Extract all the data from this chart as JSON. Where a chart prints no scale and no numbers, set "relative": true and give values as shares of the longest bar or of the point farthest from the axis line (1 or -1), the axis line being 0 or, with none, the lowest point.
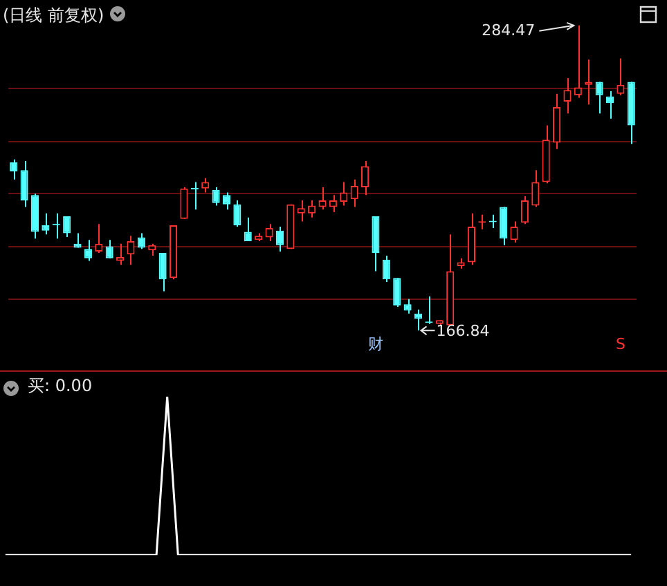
{
  "chart_data": [
    {
      "type": "candlestick",
      "title": "(日线 前复权)",
      "categories": [
        null,
        null,
        null,
        null,
        null,
        null,
        null,
        null,
        null,
        null,
        null,
        null,
        null,
        null,
        null,
        null,
        null,
        null,
        null,
        null,
        null,
        null,
        null,
        null,
        null,
        null,
        null,
        null,
        null,
        null,
        null,
        null,
        null,
        null,
        null,
        null,
        null,
        null,
        null,
        null,
        null,
        null,
        null,
        null,
        null,
        null,
        null,
        null,
        null,
        null,
        null,
        null,
        null,
        null,
        null,
        null,
        null,
        null,
        null
      ],
      "ohlc": [
        [
          231.7,
          232.8,
          225.1,
          228.2
        ],
        [
          228.7,
          232.2,
          214.5,
          217.0
        ],
        [
          219.1,
          219.6,
          202.3,
          204.9
        ],
        [
          207.4,
          212.0,
          203.9,
          205.4
        ],
        [
          207.9,
          212.0,
          202.3,
          207.5
        ],
        [
          210.9,
          210.9,
          202.9,
          204.4
        ],
        [
          200.3,
          204.4,
          198.8,
          198.8
        ],
        [
          198.3,
          201.8,
          193.7,
          194.7
        ],
        [
          197.3,
          207.9,
          196.8,
          200.3
        ],
        [
          199.3,
          201.8,
          194.7,
          194.7
        ],
        [
          193.7,
          200.3,
          192.2,
          195.2
        ],
        [
          196.2,
          203.4,
          192.2,
          201.3
        ],
        [
          202.8,
          204.4,
          198.3,
          198.8
        ],
        [
          197.8,
          200.3,
          195.7,
          199.8
        ],
        [
          196.8,
          196.8,
          182.0,
          186.6
        ],
        [
          187.1,
          207.4,
          186.6,
          207.4
        ],
        [
          209.9,
          222.1,
          209.9,
          221.6
        ],
        [
          221.6,
          224.1,
          213.5,
          221.3
        ],
        [
          221.6,
          225.6,
          220.1,
          224.1
        ],
        [
          221.1,
          222.1,
          215.0,
          216.0
        ],
        [
          219.1,
          220.1,
          213.5,
          215.5
        ],
        [
          215.5,
          217.0,
          206.9,
          207.4
        ],
        [
          204.9,
          210.4,
          201.3,
          201.3
        ],
        [
          201.8,
          204.4,
          201.3,
          203.4
        ],
        [
          202.8,
          207.9,
          201.3,
          206.4
        ],
        [
          205.4,
          206.9,
          197.3,
          199.8
        ],
        [
          198.3,
          215.5,
          198.3,
          215.5
        ],
        [
          212.0,
          217.0,
          208.9,
          214.0
        ],
        [
          212.0,
          217.0,
          210.4,
          215.0
        ],
        [
          214.5,
          222.1,
          213.5,
          217.0
        ],
        [
          214.5,
          219.1,
          212.5,
          217.0
        ],
        [
          216.5,
          224.1,
          215.0,
          220.1
        ],
        [
          217.5,
          225.1,
          214.5,
          222.6
        ],
        [
          222.1,
          232.2,
          219.1,
          230.2
        ],
        [
          210.9,
          210.9,
          189.7,
          196.8
        ],
        [
          194.2,
          195.7,
          185.6,
          186.6
        ],
        [
          187.1,
          187.1,
          176.0,
          176.5
        ],
        [
          177.0,
          179.0,
          173.4,
          174.5
        ],
        [
          173.4,
          174.9,
          166.84,
          171.4
        ],
        [
          169.9,
          180.0,
          169.4,
          169.8
        ],
        [
          169.4,
          170.9,
          168.9,
          170.9
        ],
        [
          168.9,
          203.9,
          168.9,
          189.7
        ],
        [
          191.7,
          194.7,
          190.7,
          193.2
        ],
        [
          193.2,
          212.0,
          192.2,
          206.9
        ],
        [
          208.4,
          211.5,
          205.9,
          208.9
        ],
        [
          209.0,
          211.5,
          206.4,
          208.6
        ],
        [
          214.5,
          214.5,
          199.8,
          202.3
        ],
        [
          201.8,
          208.9,
          200.8,
          206.9
        ],
        [
          208.4,
          218.6,
          207.9,
          217.0
        ],
        [
          215.0,
          228.7,
          214.5,
          224.1
        ],
        [
          224.1,
          245.9,
          223.6,
          240.4
        ],
        [
          239.3,
          258.1,
          236.8,
          253.0
        ],
        [
          255.1,
          264.2,
          250.5,
          259.6
        ],
        [
          257.6,
          284.47,
          256.6,
          260.6
        ],
        [
          261.6,
          271.3,
          254.0,
          262.7
        ],
        [
          262.7,
          262.7,
          250.5,
          257.6
        ],
        [
          257.1,
          259.1,
          248.5,
          254.5
        ],
        [
          258.1,
          271.8,
          257.6,
          261.6
        ],
        [
          262.7,
          262.7,
          238.8,
          245.9
        ]
      ],
      "colors": [
        "#54ffff",
        "#54ffff",
        "#54ffff",
        "#54ffff",
        "#54ffff",
        "#54ffff",
        "#54ffff",
        "#54ffff",
        "#ff3232",
        "#54ffff",
        "#ff3232",
        "#ff3232",
        "#54ffff",
        "#ff3232",
        "#54ffff",
        "#ff3232",
        "#ff3232",
        "#54ffff",
        "#ff3232",
        "#54ffff",
        "#54ffff",
        "#54ffff",
        "#54ffff",
        "#ff3232",
        "#ff3232",
        "#54ffff",
        "#ff3232",
        "#ff3232",
        "#ff3232",
        "#ff3232",
        "#ff3232",
        "#ff3232",
        "#ff3232",
        "#ff3232",
        "#54ffff",
        "#54ffff",
        "#54ffff",
        "#54ffff",
        "#54ffff",
        "#54ffff",
        "#ff3232",
        "#ff3232",
        "#ff3232",
        "#ff3232",
        "#ff3232",
        "#54ffff",
        "#54ffff",
        "#ff3232",
        "#ff3232",
        "#ff3232",
        "#ff3232",
        "#ff3232",
        "#ff3232",
        "#ff3232",
        "#ff3232",
        "#54ffff",
        "#54ffff",
        "#ff3232",
        "#54ffff"
      ],
      "annotations": [
        "284.47",
        "166.84",
        "财",
        "S"
      ],
      "yticks": [
        {
          "value": 260.1,
          "label": null
        },
        {
          "value": 239.8,
          "label": null
        },
        {
          "value": 219.6,
          "label": null
        },
        {
          "value": 199.3,
          "label": null
        },
        {
          "value": 179.0,
          "label": null
        }
      ],
      "grid": "y",
      "legend": false
    },
    {
      "type": "line",
      "title": "买: 0.00",
      "relative": true,
      "categories": [
        null,
        null,
        null,
        null,
        null,
        null,
        null,
        null,
        null,
        null,
        null,
        null,
        null,
        null,
        null,
        null,
        null,
        null,
        null,
        null,
        null,
        null,
        null,
        null,
        null,
        null,
        null,
        null,
        null,
        null,
        null,
        null,
        null,
        null,
        null,
        null,
        null,
        null,
        null,
        null,
        null,
        null,
        null,
        null,
        null,
        null,
        null,
        null,
        null,
        null,
        null,
        null,
        null,
        null,
        null,
        null,
        null,
        null,
        null
      ],
      "series": [
        {
          "color": "#ffffff",
          "values": [
            0,
            0,
            0,
            0,
            0,
            0,
            0,
            0,
            0,
            0,
            0,
            0,
            0,
            0,
            0,
            1,
            0,
            0,
            0,
            0,
            0,
            0,
            0,
            0,
            0,
            0,
            0,
            0,
            0,
            0,
            0,
            0,
            0,
            0,
            0,
            0,
            0,
            0,
            0,
            0,
            0,
            0,
            0,
            0,
            0,
            0,
            0,
            0,
            0,
            0,
            0,
            0,
            0,
            0,
            0,
            0,
            0,
            0,
            0
          ]
        }
      ],
      "legend": false,
      "marker": "none",
      "line_style": "solid"
    }
  ]
}
